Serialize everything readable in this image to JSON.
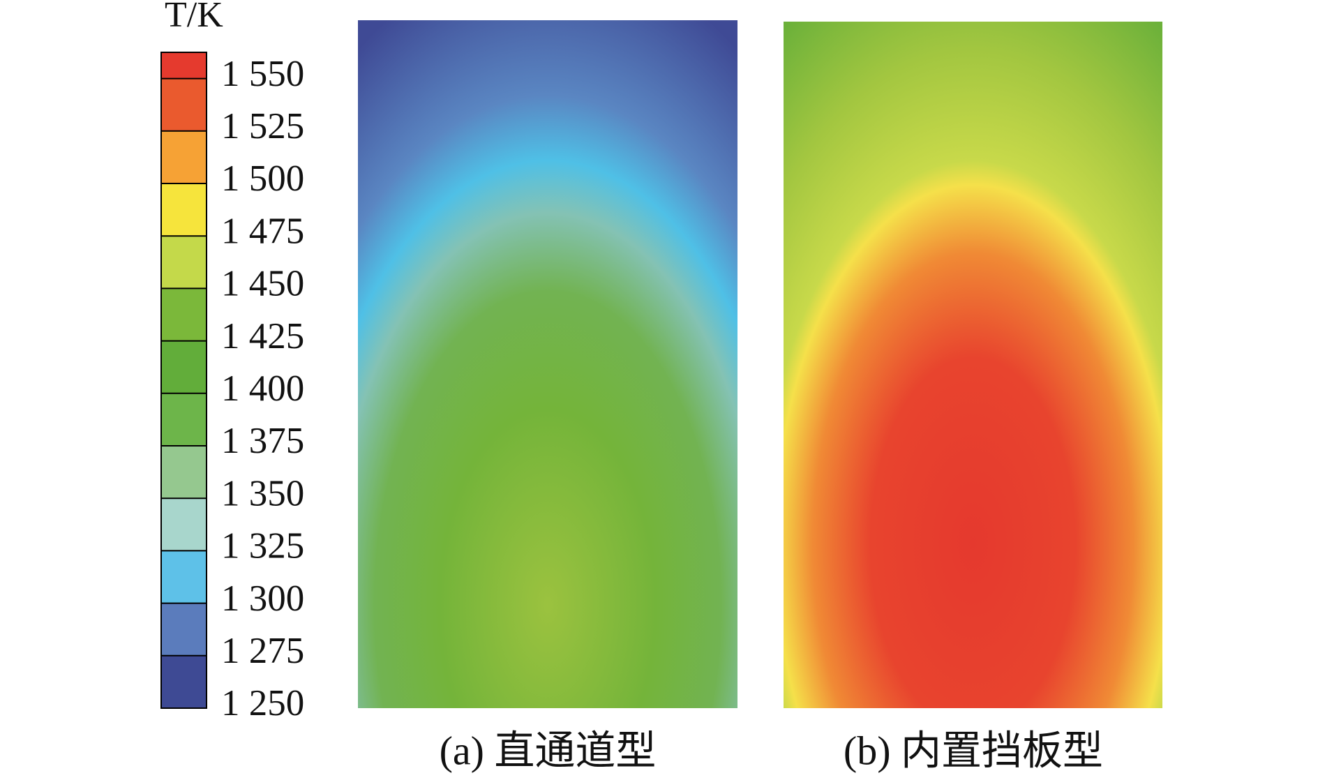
{
  "chart_data": {
    "type": "colormap",
    "title": "T/K",
    "ylim": [
      1250,
      1562.5
    ],
    "yticks": [
      {
        "value": 1250,
        "label": "1 250"
      },
      {
        "value": 1275,
        "label": "1 275"
      },
      {
        "value": 1300,
        "label": "1 300"
      },
      {
        "value": 1325,
        "label": "1 325"
      },
      {
        "value": 1350,
        "label": "1 350"
      },
      {
        "value": 1375,
        "label": "1 375"
      },
      {
        "value": 1400,
        "label": "1 400"
      },
      {
        "value": 1425,
        "label": "1 425"
      },
      {
        "value": 1450,
        "label": "1 450"
      },
      {
        "value": 1475,
        "label": "1 475"
      },
      {
        "value": 1500,
        "label": "1 500"
      },
      {
        "value": 1525,
        "label": "1 525"
      },
      {
        "value": 1550,
        "label": "1 550"
      }
    ],
    "colors": [
      "#3e4a94",
      "#5b7cbc",
      "#5ec1e8",
      "#a8d6cc",
      "#95c88f",
      "#6db54a",
      "#62ad3a",
      "#7bb83a",
      "#c4d94a",
      "#f6e43c",
      "#f6a235",
      "#ea5a2e",
      "#e53a2e"
    ],
    "panels": [
      {
        "label": "(a) 直通道型"
      },
      {
        "label": "(b) 内置挡板型"
      }
    ]
  }
}
